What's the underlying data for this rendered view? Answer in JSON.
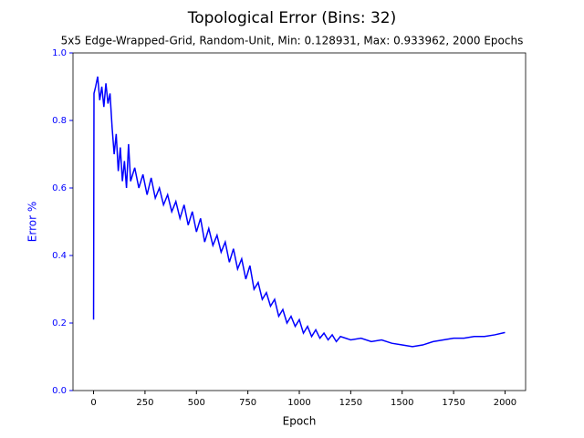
{
  "chart_data": {
    "type": "line",
    "title": "Topological Error (Bins: 32)",
    "subtitle": "5x5 Edge-Wrapped-Grid, Random-Unit, Min: 0.128931, Max: 0.933962, 2000 Epochs",
    "xlabel": "Epoch",
    "ylabel": "Error %",
    "ylabel_color": "#0000ff",
    "xlim": [
      -100,
      2100
    ],
    "ylim": [
      0,
      1
    ],
    "xticks": [
      0,
      250,
      500,
      750,
      1000,
      1250,
      1500,
      1750,
      2000
    ],
    "yticks": [
      {
        "value": 0,
        "label": "0.0"
      },
      0.2,
      0.4,
      0.6,
      0.8,
      {
        "value": 1,
        "label": "1.0"
      }
    ],
    "x": [
      0,
      2,
      10,
      20,
      30,
      40,
      50,
      60,
      70,
      80,
      90,
      100,
      110,
      120,
      130,
      140,
      150,
      160,
      170,
      180,
      200,
      220,
      240,
      260,
      280,
      300,
      320,
      340,
      360,
      380,
      400,
      420,
      440,
      460,
      480,
      500,
      520,
      540,
      560,
      580,
      600,
      620,
      640,
      660,
      680,
      700,
      720,
      740,
      760,
      780,
      800,
      820,
      840,
      860,
      880,
      900,
      920,
      940,
      960,
      980,
      1000,
      1020,
      1040,
      1060,
      1080,
      1100,
      1120,
      1140,
      1160,
      1180,
      1200,
      1250,
      1300,
      1350,
      1400,
      1450,
      1500,
      1550,
      1600,
      1650,
      1700,
      1750,
      1800,
      1850,
      1900,
      1950,
      2000
    ],
    "series": [
      {
        "name": "Topological Error",
        "color": "#0000ff",
        "values": [
          0.21,
          0.88,
          0.9,
          0.93,
          0.86,
          0.9,
          0.84,
          0.91,
          0.85,
          0.88,
          0.78,
          0.7,
          0.76,
          0.65,
          0.72,
          0.62,
          0.68,
          0.6,
          0.73,
          0.62,
          0.66,
          0.6,
          0.64,
          0.58,
          0.63,
          0.57,
          0.6,
          0.55,
          0.58,
          0.53,
          0.56,
          0.51,
          0.55,
          0.49,
          0.53,
          0.47,
          0.51,
          0.44,
          0.48,
          0.43,
          0.46,
          0.41,
          0.44,
          0.38,
          0.42,
          0.36,
          0.39,
          0.33,
          0.37,
          0.3,
          0.32,
          0.27,
          0.29,
          0.25,
          0.27,
          0.22,
          0.24,
          0.2,
          0.22,
          0.19,
          0.21,
          0.17,
          0.19,
          0.16,
          0.18,
          0.155,
          0.17,
          0.15,
          0.165,
          0.145,
          0.16,
          0.15,
          0.155,
          0.145,
          0.15,
          0.14,
          0.135,
          0.13,
          0.135,
          0.145,
          0.15,
          0.155,
          0.155,
          0.16,
          0.16,
          0.165,
          0.172
        ]
      }
    ]
  }
}
